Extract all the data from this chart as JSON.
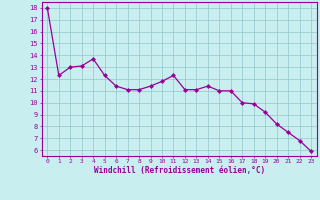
{
  "x": [
    0,
    1,
    2,
    3,
    4,
    5,
    6,
    7,
    8,
    9,
    10,
    11,
    12,
    13,
    14,
    15,
    16,
    17,
    18,
    19,
    20,
    21,
    22,
    23
  ],
  "y": [
    18,
    12.3,
    13.0,
    13.1,
    13.7,
    12.3,
    11.4,
    11.1,
    11.1,
    11.4,
    11.8,
    12.3,
    11.1,
    11.1,
    11.4,
    11.0,
    11.0,
    10.0,
    9.9,
    9.2,
    8.2,
    7.5,
    6.8,
    5.9
  ],
  "line_color": "#990099",
  "marker": "D",
  "marker_size": 2,
  "bg_color": "#c8eef0",
  "grid_color": "#90c8cc",
  "xlabel": "Windchill (Refroidissement éolien,°C)",
  "xlim": [
    -0.5,
    23.5
  ],
  "ylim": [
    5.5,
    18.5
  ],
  "yticks": [
    6,
    7,
    8,
    9,
    10,
    11,
    12,
    13,
    14,
    15,
    16,
    17,
    18
  ],
  "xticks": [
    0,
    1,
    2,
    3,
    4,
    5,
    6,
    7,
    8,
    9,
    10,
    11,
    12,
    13,
    14,
    15,
    16,
    17,
    18,
    19,
    20,
    21,
    22,
    23
  ],
  "xlabel_color": "#990099",
  "tick_color": "#990099",
  "spine_color": "#990099"
}
